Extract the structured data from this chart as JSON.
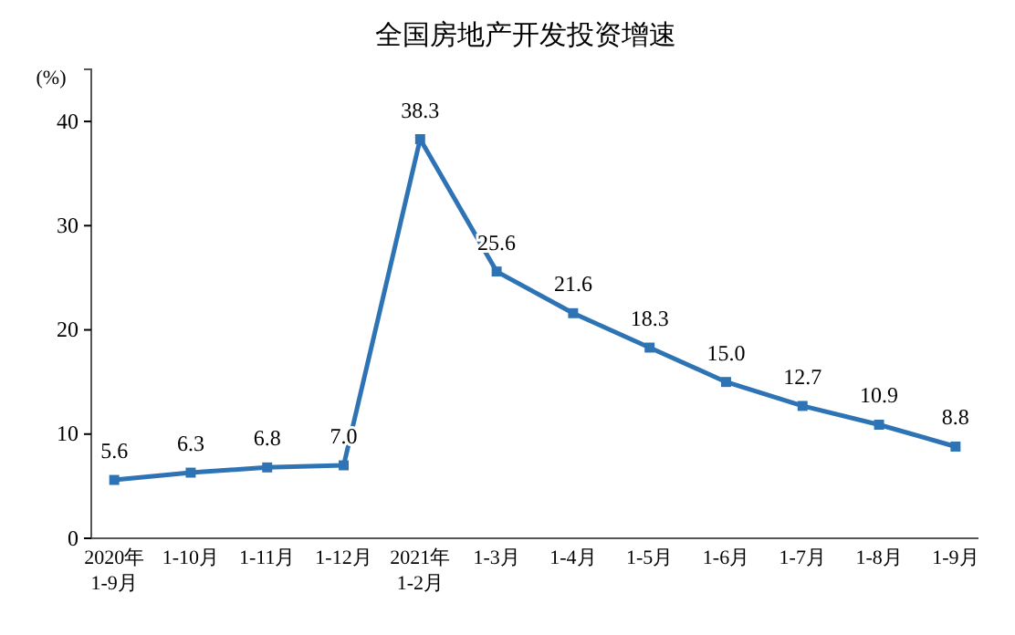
{
  "chart_data": {
    "type": "line",
    "title": "全国房地产开发投资增速",
    "ylabel": "(%)",
    "categories": [
      "2020年\n1-9月",
      "1-10月",
      "1-11月",
      "1-12月",
      "2021年\n1-2月",
      "1-3月",
      "1-4月",
      "1-5月",
      "1-6月",
      "1-7月",
      "1-8月",
      "1-9月"
    ],
    "series": [
      {
        "color": "#2e74b5",
        "values": [
          5.6,
          6.3,
          6.8,
          7.0,
          38.3,
          25.6,
          21.6,
          18.3,
          15.0,
          12.7,
          10.9,
          8.8
        ],
        "value_labels": [
          "5.6",
          "6.3",
          "6.8",
          "7.0",
          "38.3",
          "25.6",
          "21.6",
          "18.3",
          "15.0",
          "12.7",
          "10.9",
          "8.8"
        ]
      }
    ],
    "ylim": [
      0,
      45
    ],
    "yticks": [
      0,
      10,
      20,
      30,
      40
    ],
    "grid": false,
    "marker": "square",
    "line_style": "solid"
  }
}
